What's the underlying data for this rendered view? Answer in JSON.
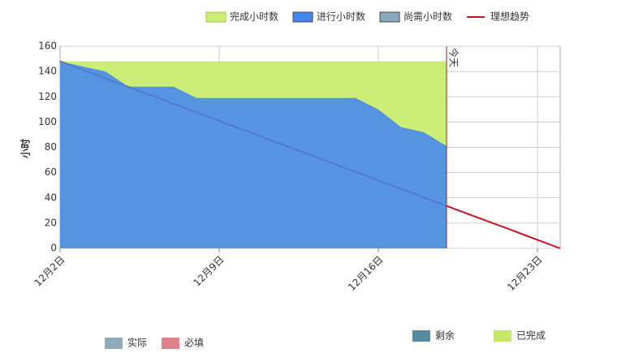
{
  "chart_data": {
    "type": "burndown",
    "ylabel": "小时",
    "categories": [
      "12月2日",
      null,
      null,
      null,
      null,
      null,
      null,
      "12月9日",
      null,
      null,
      null,
      null,
      null,
      null,
      "12月16日",
      null,
      null,
      null,
      null,
      null,
      null,
      "12月23日",
      null
    ],
    "series": [
      {
        "name": "完成小时数",
        "color": "#ccee77",
        "values": [
          148,
          148,
          148,
          148,
          148,
          148,
          148,
          148,
          148,
          148,
          148,
          148,
          148,
          148,
          148,
          148,
          148,
          148,
          null,
          null,
          null,
          null,
          null
        ]
      },
      {
        "name": "进行小时数",
        "color": "#4488ee",
        "values": [
          148,
          144,
          140,
          128,
          128,
          128,
          119,
          119,
          119,
          119,
          119,
          119,
          119,
          119,
          110,
          96,
          92,
          81,
          null,
          null,
          null,
          null,
          null
        ]
      },
      {
        "name": "尚需小时数",
        "color": "#88aabb",
        "values": [
          null,
          null,
          null,
          null,
          null,
          null,
          null,
          null,
          null,
          null,
          null,
          null,
          null,
          null,
          null,
          null,
          null,
          null,
          null,
          null,
          null,
          null,
          null
        ]
      },
      {
        "name": "理想趋势",
        "color": "#cc1122",
        "values": [
          148,
          141.3,
          134.5,
          127.8,
          121.1,
          114.4,
          107.6,
          100.9,
          94.2,
          87.5,
          80.7,
          74,
          67.3,
          60.5,
          53.8,
          47.1,
          40.4,
          33.6,
          26.9,
          20.2,
          13.5,
          6.7,
          0
        ]
      }
    ],
    "annotation": "今天",
    "ylim": [
      0,
      160
    ],
    "yticks": [
      0,
      20,
      40,
      60,
      80,
      100,
      120,
      140,
      160
    ],
    "grid": true,
    "footer_legend": [
      {
        "name": "实际",
        "color": "#8eaabb"
      },
      {
        "name": "必填",
        "color": "#e08088"
      },
      {
        "name": "剩余",
        "color": "#5a8aa0"
      },
      {
        "name": "已完成",
        "color": "#c4e866"
      }
    ]
  }
}
